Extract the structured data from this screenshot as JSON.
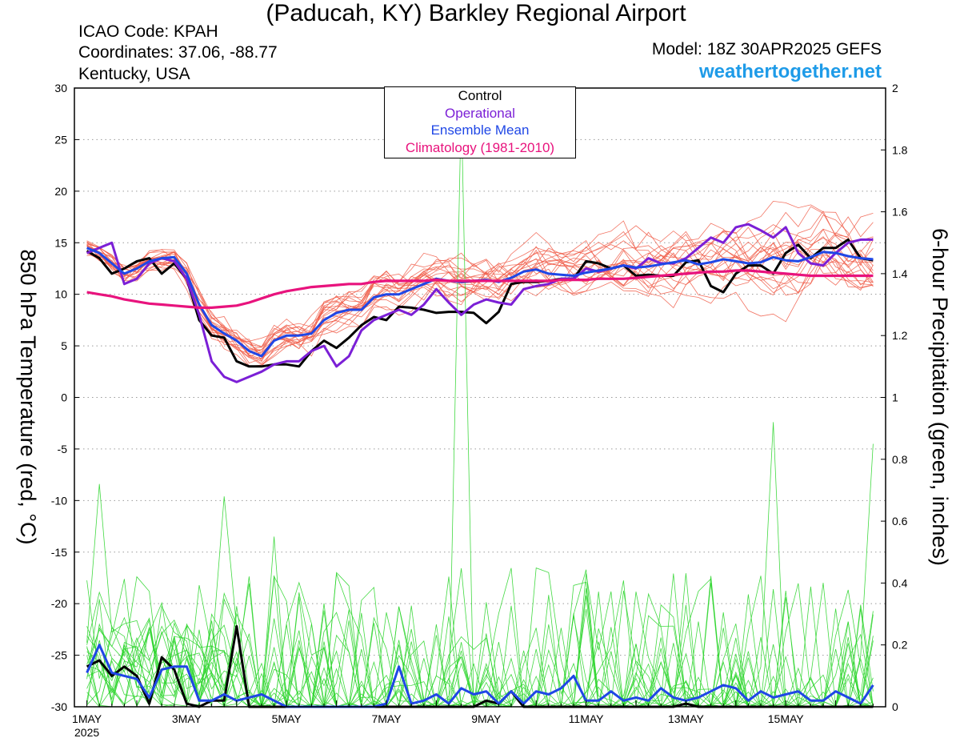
{
  "header": {
    "title": "(Paducah, KY) Barkley Regional Airport",
    "icao": "ICAO Code: KPAH",
    "coords": "Coordinates: 37.06, -88.77",
    "region": "Kentucky, USA",
    "model": "Model: 18Z 30APR2025 GEFS",
    "site": "weathertogether.net"
  },
  "colors": {
    "control": "#000000",
    "operational": "#7b1fd6",
    "ensemble_mean": "#1f47e6",
    "climatology": "#e8137d",
    "members_temp": "#f05a46",
    "members_precip": "#2ed52e",
    "site": "#1e9be8"
  },
  "chart_data": {
    "type": "line",
    "title": "(Paducah, KY) Barkley Regional Airport",
    "ylabel": "850 hPa Temperature (red, °C)",
    "y2label": "6-hour Precipitation (green, inches)",
    "ylim": [
      -30,
      30
    ],
    "y2lim": [
      0,
      2
    ],
    "yticks": [
      "30",
      "25",
      "20",
      "15",
      "10",
      "5",
      "0",
      "-5",
      "-10",
      "-15",
      "-20",
      "-25",
      "-30"
    ],
    "y2ticks": [
      "2",
      "1.8",
      "1.6",
      "1.4",
      "1.2",
      "1",
      "0.8",
      "0.6",
      "0.4",
      "0.2",
      "0"
    ],
    "xticks": [
      {
        "day": 0,
        "label": "1MAY",
        "sub": "2025"
      },
      {
        "day": 2,
        "label": "3MAY"
      },
      {
        "day": 4,
        "label": "5MAY"
      },
      {
        "day": 6,
        "label": "7MAY"
      },
      {
        "day": 8,
        "label": "9MAY"
      },
      {
        "day": 10,
        "label": "11MAY"
      },
      {
        "day": 12,
        "label": "13MAY"
      },
      {
        "day": 14,
        "label": "15MAY"
      }
    ],
    "xlim_days": [
      -0.25,
      16.0
    ],
    "legend": {
      "placement": "top-center",
      "entries": [
        {
          "label": "Control",
          "color": "#000000"
        },
        {
          "label": "Operational",
          "color": "#7b1fd6"
        },
        {
          "label": "Ensemble Mean",
          "color": "#1f47e6"
        },
        {
          "label": "Climatology (1981-2010)",
          "color": "#e8137d"
        }
      ]
    },
    "grid": "horizontal dotted",
    "x_days": [
      0,
      0.25,
      0.5,
      0.75,
      1,
      1.25,
      1.5,
      1.75,
      2,
      2.25,
      2.5,
      2.75,
      3,
      3.25,
      3.5,
      3.75,
      4,
      4.25,
      4.5,
      4.75,
      5,
      5.25,
      5.5,
      5.75,
      6,
      6.25,
      6.5,
      6.75,
      7,
      7.25,
      7.5,
      7.75,
      8,
      8.25,
      8.5,
      8.75,
      9,
      9.25,
      9.5,
      9.75,
      10,
      10.25,
      10.5,
      10.75,
      11,
      11.25,
      11.5,
      11.75,
      12,
      12.25,
      12.5,
      12.75,
      13,
      13.25,
      13.5,
      13.75,
      14,
      14.25,
      14.5,
      14.75,
      15,
      15.25,
      15.5,
      15.75
    ],
    "series": [
      {
        "name": "Control",
        "axis": "temp",
        "values": [
          14.2,
          13.5,
          12,
          12.5,
          13.2,
          13.5,
          12,
          13,
          11.5,
          7.5,
          6,
          5.8,
          3.5,
          3,
          3,
          3.2,
          3.2,
          3,
          4.5,
          5.5,
          4.8,
          5.8,
          7,
          7.8,
          7.5,
          8.8,
          8.7,
          8.5,
          8.2,
          8.3,
          8.3,
          8.2,
          7.2,
          8.3,
          11,
          11.2,
          11.2,
          11.3,
          11.5,
          11.5,
          13.2,
          13,
          12.5,
          12.8,
          11.8,
          11.9,
          11.8,
          11.8,
          13.1,
          13.3,
          10.8,
          10.2,
          12,
          12.8,
          12.8,
          12,
          14,
          14.8,
          13.5,
          14.5,
          14.5,
          15.3,
          13.5,
          13.3
        ]
      },
      {
        "name": "Operational",
        "axis": "temp",
        "values": [
          14,
          14.5,
          15,
          11,
          11.5,
          13,
          13.5,
          13.2,
          11.5,
          8,
          3.5,
          2,
          1.5,
          2,
          2.5,
          3.2,
          3.5,
          3.5,
          4.5,
          5,
          3,
          4,
          6.5,
          7.5,
          8,
          8.5,
          8,
          9,
          10.5,
          9.2,
          8,
          9,
          9.5,
          9.2,
          9,
          10.5,
          10.8,
          11,
          11.5,
          11.5,
          12.5,
          12.2,
          12.5,
          12.8,
          12.5,
          13.5,
          13,
          13,
          13.5,
          14.5,
          15.5,
          15,
          16.5,
          16.8,
          16.2,
          15.5,
          16.5,
          14,
          13,
          12.8,
          14,
          15,
          15.3,
          15.3
        ]
      },
      {
        "name": "Ensemble Mean",
        "axis": "temp",
        "values": [
          14.5,
          14,
          13,
          12,
          12.5,
          13.2,
          13.5,
          13.6,
          12,
          9,
          7,
          6.2,
          5.5,
          4.5,
          4,
          5.5,
          6,
          6,
          6.2,
          7.5,
          8.2,
          8.5,
          8.5,
          9.7,
          10,
          10,
          10.5,
          11,
          11.5,
          11.3,
          11.2,
          11.3,
          11.4,
          11.2,
          11.6,
          12.2,
          12.4,
          12,
          11.9,
          11.8,
          12.1,
          12.3,
          12.5,
          12.8,
          12.6,
          12.7,
          12.9,
          13.1,
          13.3,
          12.9,
          13.1,
          13.4,
          13.2,
          13,
          13.1,
          13.6,
          13.3,
          13.2,
          13.6,
          14.1,
          14,
          13.7,
          13.5,
          13.4
        ]
      },
      {
        "name": "Climatology (1981-2010)",
        "axis": "temp",
        "values": [
          10.2,
          10,
          9.8,
          9.5,
          9.3,
          9.1,
          9,
          8.9,
          8.8,
          8.7,
          8.7,
          8.8,
          8.9,
          9.2,
          9.6,
          10,
          10.3,
          10.5,
          10.7,
          10.8,
          10.9,
          11,
          11,
          11.2,
          11.3,
          11.3,
          11.3,
          11.3,
          11.4,
          11.3,
          11.3,
          11.3,
          11.3,
          11.3,
          11.3,
          11.3,
          11.3,
          11.3,
          11.4,
          11.4,
          11.4,
          11.5,
          11.5,
          11.5,
          11.6,
          11.7,
          11.8,
          11.9,
          12,
          12.1,
          12.2,
          12.2,
          12.3,
          12.3,
          12.2,
          12.1,
          12,
          11.9,
          11.8,
          11.8,
          11.8,
          11.8,
          11.8,
          11.8
        ]
      },
      {
        "name": "Control",
        "axis": "precip",
        "values": [
          0.13,
          0.15,
          0.1,
          0.13,
          0.1,
          0.01,
          0.16,
          0.12,
          0.01,
          0,
          0.02,
          0.02,
          0.26,
          0,
          0,
          0,
          0,
          0,
          0,
          0,
          0,
          0,
          0,
          0,
          0,
          0,
          0,
          0,
          0,
          0,
          0,
          0,
          0.02,
          0.01,
          0.05,
          0,
          0,
          0,
          0,
          0,
          0,
          0,
          0,
          0,
          0,
          0,
          0,
          0,
          0.01,
          0,
          0,
          0,
          0,
          0,
          0,
          0,
          0,
          0,
          0,
          0,
          0,
          0,
          0,
          0
        ]
      },
      {
        "name": "Ensemble Mean",
        "axis": "precip",
        "values": [
          0.11,
          0.2,
          0.11,
          0.1,
          0.09,
          0.03,
          0.12,
          0.13,
          0.13,
          0.02,
          0.02,
          0.04,
          0.02,
          0.03,
          0.04,
          0.02,
          0,
          0,
          0,
          0,
          0,
          0,
          0,
          0,
          0.01,
          0.13,
          0.01,
          0.02,
          0.04,
          0.01,
          0.06,
          0.04,
          0.05,
          0.01,
          0.05,
          0.01,
          0.05,
          0.04,
          0.06,
          0.1,
          0.02,
          0.02,
          0.05,
          0.02,
          0.03,
          0.02,
          0.06,
          0.03,
          0.02,
          0.03,
          0.05,
          0.07,
          0.06,
          0.02,
          0.05,
          0.03,
          0.04,
          0.05,
          0.02,
          0.02,
          0.05,
          0.03,
          0.01,
          0.07
        ]
      }
    ]
  }
}
